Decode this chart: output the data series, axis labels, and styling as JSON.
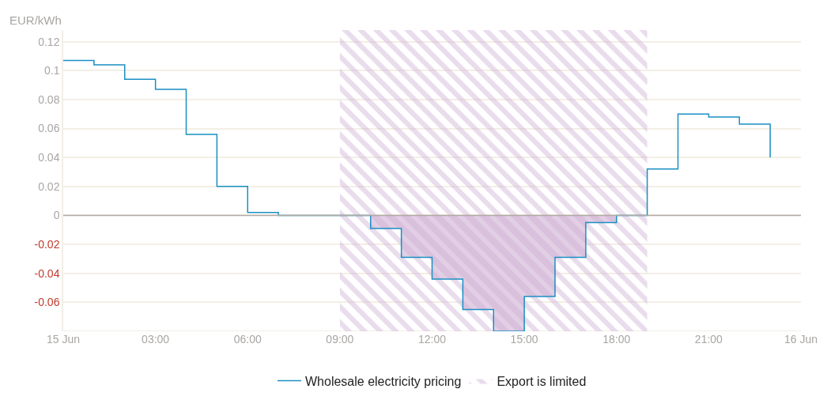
{
  "chart_data": {
    "type": "step",
    "ylabel": "EUR/kWh",
    "x": [
      0,
      1,
      2,
      3,
      4,
      5,
      6,
      7,
      8,
      9,
      10,
      11,
      12,
      13,
      14,
      15,
      16,
      17,
      18,
      19,
      20,
      21,
      22,
      23
    ],
    "series": [
      {
        "name": "Wholesale electricity pricing",
        "color": "#1a8fc4",
        "values": [
          0.107,
          0.104,
          0.094,
          0.087,
          0.056,
          0.02,
          0.002,
          0,
          0,
          0,
          -0.009,
          -0.029,
          -0.044,
          -0.065,
          -0.08,
          -0.056,
          -0.029,
          -0.005,
          0,
          0.032,
          0.07,
          0.068,
          0.063,
          0.04
        ]
      },
      {
        "type": "area",
        "color": "#cfb1d4",
        "x": [
          10,
          11,
          12,
          13,
          14,
          15,
          16,
          17,
          18
        ],
        "values": [
          -0.009,
          -0.029,
          -0.044,
          -0.065,
          -0.08,
          -0.056,
          -0.029,
          -0.005,
          0
        ]
      }
    ],
    "bands": [
      {
        "axis": "x",
        "from": 9,
        "to": 19,
        "label": "Export is limited",
        "color": "#cfb1d4"
      }
    ],
    "ref_lines": [
      {
        "axis": "y",
        "value": 0,
        "color": "#b0aaa5"
      }
    ],
    "xlim": [
      0,
      24
    ],
    "xticks": [
      {
        "value": 0,
        "label": "15 Jun"
      },
      {
        "value": 3,
        "label": "03:00"
      },
      {
        "value": 6,
        "label": "06:00"
      },
      {
        "value": 9,
        "label": "09:00"
      },
      {
        "value": 12,
        "label": "12:00"
      },
      {
        "value": 15,
        "label": "15:00"
      },
      {
        "value": 18,
        "label": "18:00"
      },
      {
        "value": 21,
        "label": "21:00"
      },
      {
        "value": 24,
        "label": "16 Jun"
      }
    ],
    "ylim": [
      -0.08,
      0.128
    ],
    "yticks": [
      {
        "value": -0.08,
        "label": null
      },
      -0.06,
      -0.04,
      -0.02,
      0,
      0.02,
      0.04,
      0.06,
      0.08,
      0.1,
      0.12
    ],
    "grid": "y",
    "legend": "bottom",
    "marker": "none",
    "line_style": "solid"
  }
}
